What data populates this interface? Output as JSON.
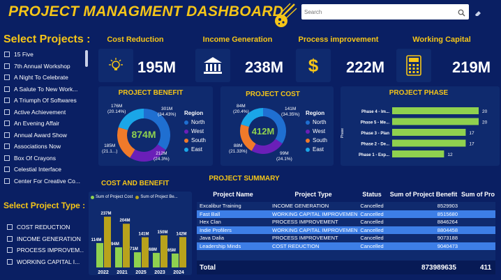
{
  "header": {
    "title": "PROJECT MANAGMENT DASHBOARD",
    "search_placeholder": "Search"
  },
  "select_projects": {
    "title": "Select Projects :",
    "items": [
      "15 Five",
      "7th Annual Workshop",
      "A Night To Celebrate",
      "A Salute To New Work...",
      "A Triumph Of Softwares",
      "Active Achievement",
      "An Evening Affair",
      "Annual Award Show",
      "Associations Now",
      "Box Of Crayons",
      "Celestial Interface",
      "Center For Creative Co..."
    ]
  },
  "select_type": {
    "title": "Select Project Type :",
    "items": [
      "COST REDUCTION",
      "INCOME GENERATION",
      "PROCESS IMPROVEM...",
      "WORKING CAPITAL I..."
    ]
  },
  "kpis": [
    {
      "label": "Cost Reduction",
      "value": "195M",
      "icon": "lightbulb-gear-icon"
    },
    {
      "label": "Income Generation",
      "value": "238M",
      "icon": "bank-icon"
    },
    {
      "label": "Process improvement",
      "value": "222M",
      "icon": "dollar-icon"
    },
    {
      "label": "Working Capital",
      "value": "219M",
      "icon": "calculator-icon"
    }
  ],
  "colors": {
    "north": "#1f6fd1",
    "west": "#6a1fb8",
    "south": "#f07a2a",
    "east": "#1aa6e8",
    "lime": "#8fd14f",
    "olive": "#b8a21c",
    "accent": "#f5c518"
  },
  "project_benefit": {
    "title": "PROJECT BENEFIT",
    "center": "874M",
    "legend_title": "Region",
    "legend": [
      "North",
      "West",
      "South",
      "East"
    ],
    "labels": [
      {
        "v": "301M",
        "p": "(34.43%)"
      },
      {
        "v": "212M",
        "p": "(24.3%)"
      },
      {
        "v": "185M",
        "p": "(21.1...)"
      },
      {
        "v": "176M",
        "p": "(20.14%)"
      }
    ]
  },
  "project_cost": {
    "title": "PROJECT COST",
    "center": "412M",
    "legend_title": "Region",
    "legend": [
      "North",
      "West",
      "South",
      "East"
    ],
    "labels": [
      {
        "v": "141M",
        "p": "(34.35%)"
      },
      {
        "v": "99M",
        "p": "(24.1%)"
      },
      {
        "v": "88M",
        "p": "(21.33%)"
      },
      {
        "v": "84M",
        "p": "(20.4%)"
      }
    ]
  },
  "project_phase": {
    "title": "PROJECT PHASE",
    "axis_label": "Phase"
  },
  "summary": {
    "title": "PROJECT SUMMARY",
    "columns": [
      "Project Name",
      "Project Type",
      "Status",
      "Sum of Project Benefit",
      "Sum of Pro"
    ],
    "rows": [
      [
        "Excalibur Training",
        "INCOME GENERATION",
        "Cancelled",
        "8529903"
      ],
      [
        "Fast Ball",
        "WORKING CAPITAL IMPROVEMENT",
        "Cancelled",
        "8515680"
      ],
      [
        "Hex Clan",
        "PROCESS IMPROVEMENT",
        "Cancelled",
        "8846264"
      ],
      [
        "Indie Profilers",
        "WORKING CAPITAL IMPROVEMENT",
        "Cancelled",
        "8804458"
      ],
      [
        "Java Dalia",
        "PROCESS IMPROVEMENT",
        "Cancelled",
        "9073188"
      ],
      [
        "Leadership Minds",
        "COST REDUCTION",
        "Cancelled",
        "9040473"
      ]
    ],
    "total_label": "Total",
    "total_benefit": "873989635",
    "total_cost": "411"
  },
  "cost_benefit": {
    "title": "COST AND BENEFIT",
    "legend": [
      "Sum of Project Cost",
      "Sum of Project Be..."
    ]
  },
  "chart_data": [
    {
      "type": "pie",
      "title": "PROJECT BENEFIT",
      "categories": [
        "North",
        "West",
        "South",
        "East"
      ],
      "values": [
        301,
        212,
        185,
        176
      ],
      "unit": "M",
      "legend_title": "Region"
    },
    {
      "type": "pie",
      "title": "PROJECT COST",
      "categories": [
        "North",
        "West",
        "South",
        "East"
      ],
      "values": [
        141,
        99,
        88,
        84
      ],
      "unit": "M",
      "legend_title": "Region"
    },
    {
      "type": "bar",
      "title": "PROJECT PHASE",
      "orientation": "horizontal",
      "categories": [
        "Phase 4 - Im...",
        "Phase 5 - Me...",
        "Phase 3 - Plan",
        "Phase 2 - De...",
        "Phase 1 - Exp..."
      ],
      "values": [
        20,
        20,
        17,
        17,
        12
      ],
      "ylabel": "Phase",
      "xlim": [
        0,
        20
      ]
    },
    {
      "type": "bar",
      "title": "COST AND BENEFIT",
      "categories": [
        "2022",
        "2021",
        "2025",
        "2023",
        "2024"
      ],
      "series": [
        {
          "name": "Sum of Project Cost",
          "values": [
            114,
            94,
            71,
            68,
            65
          ],
          "labels": [
            "114M",
            "94M",
            "71M",
            "68M",
            "65M"
          ]
        },
        {
          "name": "Sum of Project Be...",
          "values": [
            237,
            204,
            141,
            150,
            142
          ],
          "labels": [
            "237M",
            "204M",
            "141M",
            "150M",
            "142M"
          ]
        }
      ],
      "ylim": [
        0,
        260
      ],
      "legend": "top"
    }
  ]
}
